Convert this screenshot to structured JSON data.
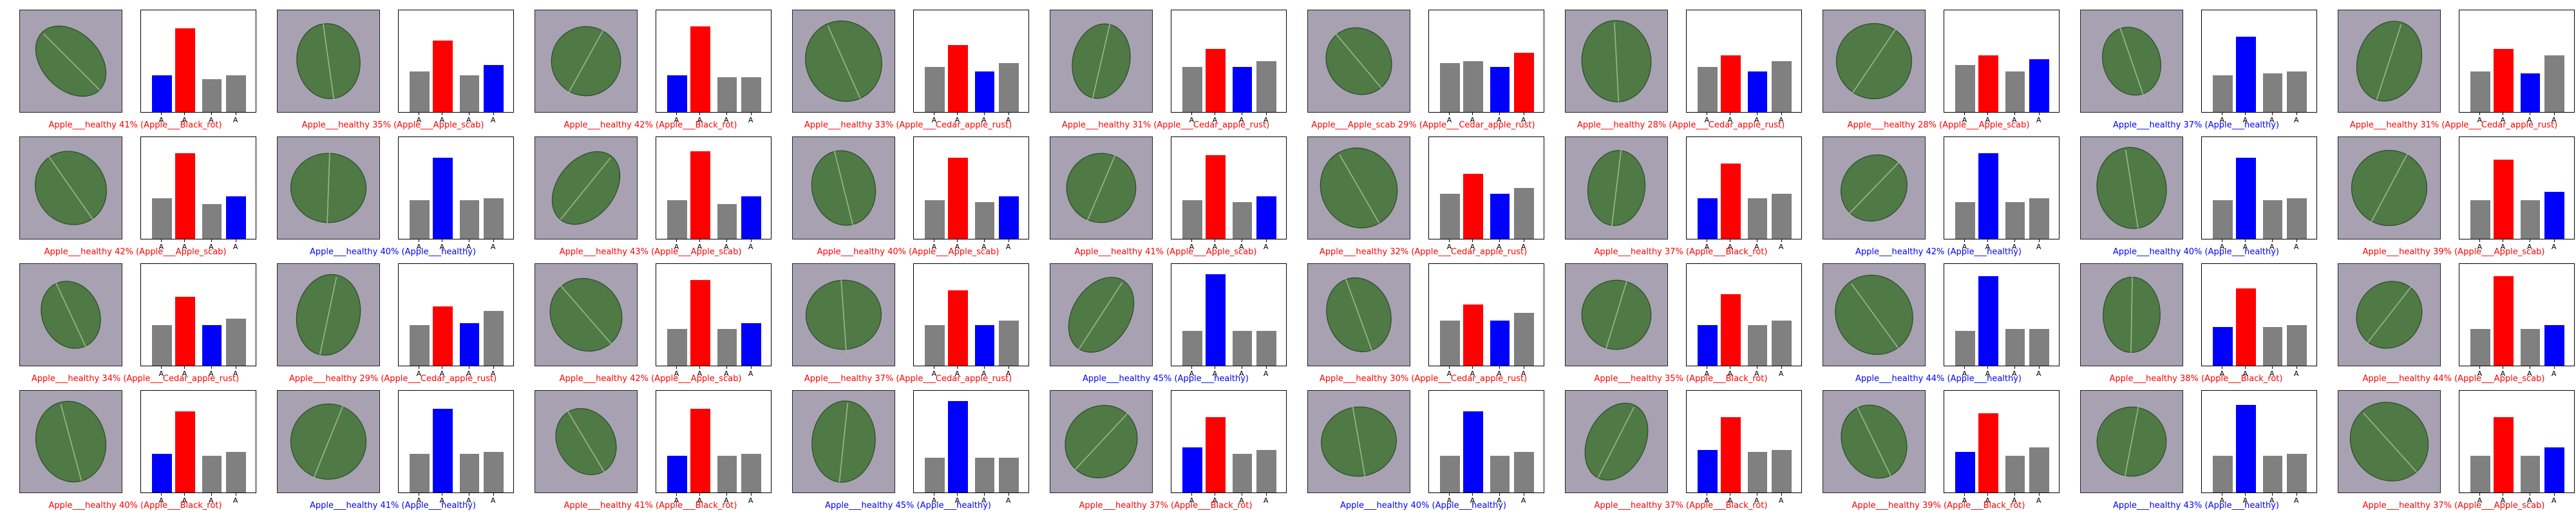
{
  "chart_data": {
    "type": "bar",
    "grid_rows": 4,
    "grid_cols": 10,
    "classes": [
      "Apple___Apple_scab",
      "Apple___Black_rot",
      "Apple___Cedar_apple_rust",
      "Apple___healthy"
    ],
    "tick_labels": [
      "A",
      "A",
      "A",
      "A"
    ],
    "colors": {
      "correct": "#0000ff",
      "wrong": "#ff0000",
      "other": "#808080",
      "leaf_bg": "#a7a1b2",
      "leaf": "#4f7a45"
    },
    "panels": [
      {
        "caption": "Apple___healthy 41% (Apple___Black_rot)",
        "caption_color": "#ff0000",
        "values": [
          0.18,
          0.41,
          0.16,
          0.18
        ],
        "pred": 1,
        "true": 0
      },
      {
        "caption": "Apple___healthy 35% (Apple___Apple_scab)",
        "caption_color": "#ff0000",
        "values": [
          0.2,
          0.35,
          0.18,
          0.23
        ],
        "pred": 1,
        "true": 3
      },
      {
        "caption": "Apple___healthy 42% (Apple___Black_rot)",
        "caption_color": "#ff0000",
        "values": [
          0.18,
          0.42,
          0.17,
          0.17
        ],
        "pred": 1,
        "true": 0
      },
      {
        "caption": "Apple___healthy 33% (Apple___Cedar_apple_rust)",
        "caption_color": "#ff0000",
        "values": [
          0.22,
          0.33,
          0.2,
          0.24
        ],
        "pred": 1,
        "true": 2
      },
      {
        "caption": "Apple___healthy 31% (Apple___Cedar_apple_rust)",
        "caption_color": "#ff0000",
        "values": [
          0.22,
          0.31,
          0.22,
          0.25
        ],
        "pred": 1,
        "true": 2
      },
      {
        "caption": "Apple___Apple_scab 29% (Apple___Cedar_apple_rust)",
        "caption_color": "#ff0000",
        "values": [
          0.24,
          0.25,
          0.22,
          0.29
        ],
        "pred": 3,
        "true": 2
      },
      {
        "caption": "Apple___healthy 28% (Apple___Cedar_apple_rust)",
        "caption_color": "#ff0000",
        "values": [
          0.22,
          0.28,
          0.2,
          0.25
        ],
        "pred": 1,
        "true": 2
      },
      {
        "caption": "Apple___healthy 28% (Apple___Apple_scab)",
        "caption_color": "#ff0000",
        "values": [
          0.23,
          0.28,
          0.2,
          0.26
        ],
        "pred": 1,
        "true": 3
      },
      {
        "caption": "Apple___healthy 37% (Apple___healthy)",
        "caption_color": "#0000ff",
        "values": [
          0.18,
          0.37,
          0.19,
          0.2
        ],
        "pred": 1,
        "true": 1
      },
      {
        "caption": "Apple___healthy 31% (Apple___Cedar_apple_rust)",
        "caption_color": "#ff0000",
        "values": [
          0.2,
          0.31,
          0.19,
          0.28
        ],
        "pred": 1,
        "true": 2
      },
      {
        "caption": "Apple___healthy 42% (Apple___Apple_scab)",
        "caption_color": "#ff0000",
        "values": [
          0.2,
          0.42,
          0.17,
          0.21
        ],
        "pred": 1,
        "true": 3
      },
      {
        "caption": "Apple___healthy 40% (Apple___healthy)",
        "caption_color": "#0000ff",
        "values": [
          0.19,
          0.4,
          0.19,
          0.2
        ],
        "pred": 1,
        "true": 1
      },
      {
        "caption": "Apple___healthy 43% (Apple___Apple_scab)",
        "caption_color": "#ff0000",
        "values": [
          0.19,
          0.43,
          0.17,
          0.21
        ],
        "pred": 1,
        "true": 3
      },
      {
        "caption": "Apple___healthy 40% (Apple___Apple_scab)",
        "caption_color": "#ff0000",
        "values": [
          0.19,
          0.4,
          0.18,
          0.21
        ],
        "pred": 1,
        "true": 3
      },
      {
        "caption": "Apple___healthy 41% (Apple___Apple_scab)",
        "caption_color": "#ff0000",
        "values": [
          0.19,
          0.41,
          0.18,
          0.21
        ],
        "pred": 1,
        "true": 3
      },
      {
        "caption": "Apple___healthy 32% (Apple___Cedar_apple_rust)",
        "caption_color": "#ff0000",
        "values": [
          0.22,
          0.32,
          0.22,
          0.25
        ],
        "pred": 1,
        "true": 2
      },
      {
        "caption": "Apple___healthy 37% (Apple___Black_rot)",
        "caption_color": "#ff0000",
        "values": [
          0.2,
          0.37,
          0.2,
          0.22
        ],
        "pred": 1,
        "true": 0
      },
      {
        "caption": "Apple___healthy 42% (Apple___healthy)",
        "caption_color": "#0000ff",
        "values": [
          0.18,
          0.42,
          0.18,
          0.2
        ],
        "pred": 1,
        "true": 1
      },
      {
        "caption": "Apple___healthy 40% (Apple___healthy)",
        "caption_color": "#0000ff",
        "values": [
          0.19,
          0.4,
          0.19,
          0.2
        ],
        "pred": 1,
        "true": 1
      },
      {
        "caption": "Apple___healthy 39% (Apple___Apple_scab)",
        "caption_color": "#ff0000",
        "values": [
          0.19,
          0.39,
          0.19,
          0.23
        ],
        "pred": 1,
        "true": 3
      },
      {
        "caption": "Apple___healthy 34% (Apple___Cedar_apple_rust)",
        "caption_color": "#ff0000",
        "values": [
          0.2,
          0.34,
          0.2,
          0.23
        ],
        "pred": 1,
        "true": 2
      },
      {
        "caption": "Apple___healthy 29% (Apple___Cedar_apple_rust)",
        "caption_color": "#ff0000",
        "values": [
          0.2,
          0.29,
          0.21,
          0.27
        ],
        "pred": 1,
        "true": 2
      },
      {
        "caption": "Apple___healthy 42% (Apple___Apple_scab)",
        "caption_color": "#ff0000",
        "values": [
          0.18,
          0.42,
          0.18,
          0.21
        ],
        "pred": 1,
        "true": 3
      },
      {
        "caption": "Apple___healthy 37% (Apple___Cedar_apple_rust)",
        "caption_color": "#ff0000",
        "values": [
          0.2,
          0.37,
          0.2,
          0.22
        ],
        "pred": 1,
        "true": 2
      },
      {
        "caption": "Apple___healthy 45% (Apple___healthy)",
        "caption_color": "#0000ff",
        "values": [
          0.17,
          0.45,
          0.17,
          0.17
        ],
        "pred": 1,
        "true": 1
      },
      {
        "caption": "Apple___healthy 30% (Apple___Cedar_apple_rust)",
        "caption_color": "#ff0000",
        "values": [
          0.22,
          0.3,
          0.22,
          0.26
        ],
        "pred": 1,
        "true": 2
      },
      {
        "caption": "Apple___healthy 35% (Apple___Black_rot)",
        "caption_color": "#ff0000",
        "values": [
          0.2,
          0.35,
          0.2,
          0.22
        ],
        "pred": 1,
        "true": 0
      },
      {
        "caption": "Apple___healthy 44% (Apple___healthy)",
        "caption_color": "#0000ff",
        "values": [
          0.17,
          0.44,
          0.18,
          0.18
        ],
        "pred": 1,
        "true": 1
      },
      {
        "caption": "Apple___healthy 38% (Apple___Black_rot)",
        "caption_color": "#ff0000",
        "values": [
          0.19,
          0.38,
          0.19,
          0.2
        ],
        "pred": 1,
        "true": 0
      },
      {
        "caption": "Apple___healthy 44% (Apple___Apple_scab)",
        "caption_color": "#ff0000",
        "values": [
          0.18,
          0.44,
          0.18,
          0.2
        ],
        "pred": 1,
        "true": 3
      },
      {
        "caption": "Apple___healthy 40% (Apple___Black_rot)",
        "caption_color": "#ff0000",
        "values": [
          0.19,
          0.4,
          0.18,
          0.2
        ],
        "pred": 1,
        "true": 0
      },
      {
        "caption": "Apple___healthy 41% (Apple___healthy)",
        "caption_color": "#0000ff",
        "values": [
          0.19,
          0.41,
          0.19,
          0.2
        ],
        "pred": 1,
        "true": 1
      },
      {
        "caption": "Apple___healthy 41% (Apple___Black_rot)",
        "caption_color": "#ff0000",
        "values": [
          0.18,
          0.41,
          0.18,
          0.19
        ],
        "pred": 1,
        "true": 0
      },
      {
        "caption": "Apple___healthy 45% (Apple___healthy)",
        "caption_color": "#0000ff",
        "values": [
          0.17,
          0.45,
          0.17,
          0.17
        ],
        "pred": 1,
        "true": 1
      },
      {
        "caption": "Apple___healthy 37% (Apple___Black_rot)",
        "caption_color": "#ff0000",
        "values": [
          0.22,
          0.37,
          0.19,
          0.21
        ],
        "pred": 1,
        "true": 0
      },
      {
        "caption": "Apple___healthy 40% (Apple___healthy)",
        "caption_color": "#0000ff",
        "values": [
          0.18,
          0.4,
          0.18,
          0.2
        ],
        "pred": 1,
        "true": 1
      },
      {
        "caption": "Apple___healthy 37% (Apple___Black_rot)",
        "caption_color": "#ff0000",
        "values": [
          0.21,
          0.37,
          0.2,
          0.21
        ],
        "pred": 1,
        "true": 0
      },
      {
        "caption": "Apple___healthy 39% (Apple___Black_rot)",
        "caption_color": "#ff0000",
        "values": [
          0.2,
          0.39,
          0.18,
          0.22
        ],
        "pred": 1,
        "true": 0
      },
      {
        "caption": "Apple___healthy 43% (Apple___healthy)",
        "caption_color": "#0000ff",
        "values": [
          0.18,
          0.43,
          0.18,
          0.19
        ],
        "pred": 1,
        "true": 1
      },
      {
        "caption": "Apple___healthy 37% (Apple___Apple_scab)",
        "caption_color": "#ff0000",
        "values": [
          0.18,
          0.37,
          0.18,
          0.22
        ],
        "pred": 1,
        "true": 3
      }
    ]
  }
}
